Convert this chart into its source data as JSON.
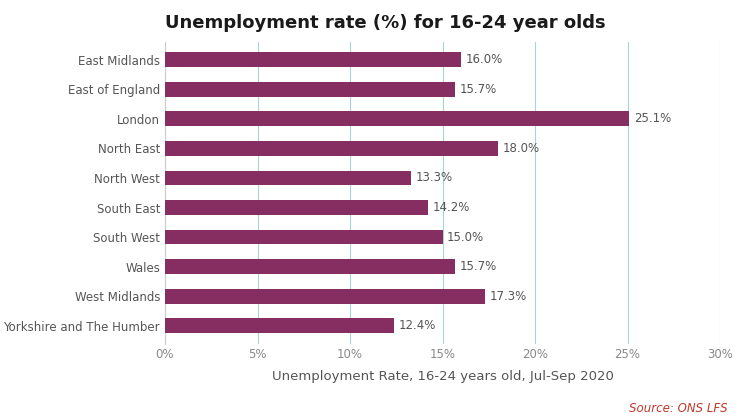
{
  "title": "Unemployment rate (%) for 16-24 year olds",
  "xlabel": "Unemployment Rate, 16-24 years old, Jul-Sep 2020",
  "source": "Source: ONS LFS",
  "categories": [
    "Yorkshire and The Humber",
    "West Midlands",
    "Wales",
    "South West",
    "South East",
    "North West",
    "North East",
    "London",
    "East of England",
    "East Midlands"
  ],
  "values": [
    12.4,
    17.3,
    15.7,
    15.0,
    14.2,
    13.3,
    18.0,
    25.1,
    15.7,
    16.0
  ],
  "labels": [
    "12.4%",
    "17.3%",
    "15.7%",
    "15.0%",
    "14.2%",
    "13.3%",
    "18.0%",
    "25.1%",
    "15.7%",
    "16.0%"
  ],
  "bar_color": "#862d62",
  "background_color": "#ffffff",
  "gridline_color": "#a8d4d4",
  "tick_color": "#888888",
  "label_color": "#555555",
  "source_color": "#c0392b",
  "xlim": [
    0,
    30
  ],
  "xticks": [
    0,
    5,
    10,
    15,
    20,
    25,
    30
  ],
  "xtick_labels": [
    "0%",
    "5%",
    "10%",
    "15%",
    "20%",
    "25%",
    "30%"
  ],
  "title_fontsize": 13,
  "label_fontsize": 8.5,
  "tick_fontsize": 8.5,
  "xlabel_fontsize": 9.5,
  "source_fontsize": 8.5,
  "bar_height": 0.5
}
